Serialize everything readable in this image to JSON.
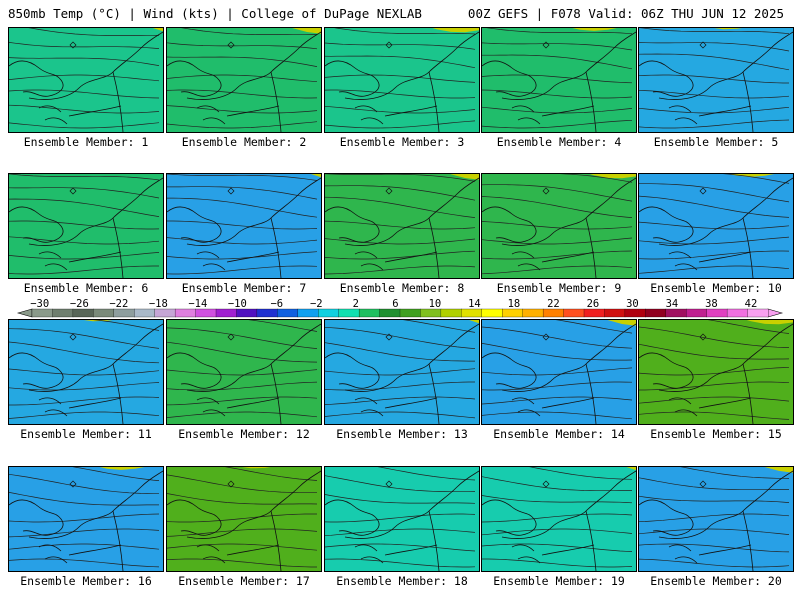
{
  "header": {
    "left_title": "850mb Temp (°C) | Wind (kts) | College of DuPage NEXLAB",
    "right_title": "00Z GEFS | F078 Valid: 06Z THU JUN 12 2025"
  },
  "panels": [
    {
      "label": "Ensemble Member: 1",
      "cool": 0.5
    },
    {
      "label": "Ensemble Member: 2",
      "cool": 0.45
    },
    {
      "label": "Ensemble Member: 3",
      "cool": 0.5
    },
    {
      "label": "Ensemble Member: 4",
      "cool": 0.45
    },
    {
      "label": "Ensemble Member: 5",
      "cool": 0.7
    },
    {
      "label": "Ensemble Member: 6",
      "cool": 0.45
    },
    {
      "label": "Ensemble Member: 7",
      "cool": 0.75
    },
    {
      "label": "Ensemble Member: 8",
      "cool": 0.4
    },
    {
      "label": "Ensemble Member: 9",
      "cool": 0.4
    },
    {
      "label": "Ensemble Member: 10",
      "cool": 0.85
    },
    {
      "label": "Ensemble Member: 11",
      "cool": 0.7
    },
    {
      "label": "Ensemble Member: 12",
      "cool": 0.4
    },
    {
      "label": "Ensemble Member: 13",
      "cool": 0.7
    },
    {
      "label": "Ensemble Member: 14",
      "cool": 0.8
    },
    {
      "label": "Ensemble Member: 15",
      "cool": 0.3
    },
    {
      "label": "Ensemble Member: 16",
      "cool": 0.75
    },
    {
      "label": "Ensemble Member: 17",
      "cool": 0.3
    },
    {
      "label": "Ensemble Member: 18",
      "cool": 0.55
    },
    {
      "label": "Ensemble Member: 19",
      "cool": 0.55
    },
    {
      "label": "Ensemble Member: 20",
      "cool": 0.75
    }
  ],
  "colorbar": {
    "tick_labels": [
      "−30",
      "−26",
      "−22",
      "−18",
      "−14",
      "−10",
      "−6",
      "−2",
      "2",
      "6",
      "10",
      "14",
      "18",
      "22",
      "26",
      "30",
      "34",
      "38",
      "42"
    ],
    "colors": [
      "#8a9a8a",
      "#6f7f6f",
      "#586658",
      "#7a8a7a",
      "#8e9e9e",
      "#a9b9c9",
      "#c6a6d6",
      "#df7fdf",
      "#d050e0",
      "#a020d0",
      "#5010c0",
      "#2030d0",
      "#1060e0",
      "#10a0f0",
      "#10d0e0",
      "#10e0b0",
      "#20c060",
      "#209030",
      "#40a020",
      "#80c020",
      "#b0d000",
      "#e0e000",
      "#ffff00",
      "#ffd000",
      "#ffb000",
      "#ff8000",
      "#ff5020",
      "#f02020",
      "#d01010",
      "#b00010",
      "#900020",
      "#a01060",
      "#c02090",
      "#e040c0",
      "#f070e0",
      "#f8a0f0"
    ]
  }
}
